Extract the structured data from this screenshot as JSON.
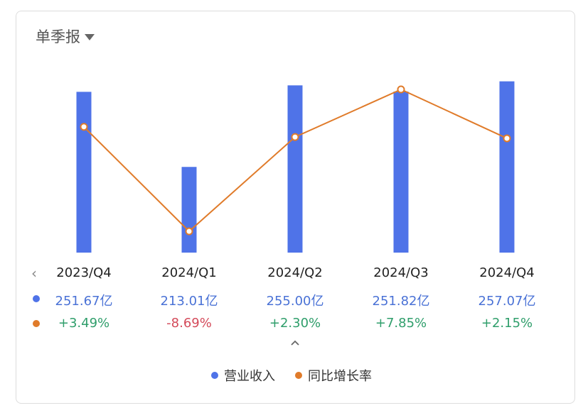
{
  "period_selector": {
    "label": "单季报"
  },
  "chart_data": {
    "type": "bar+line",
    "categories": [
      "2023/Q4",
      "2024/Q1",
      "2024/Q2",
      "2024/Q3",
      "2024/Q4"
    ],
    "series": [
      {
        "name": "营业收入",
        "type": "bar",
        "color": "#4f73e8",
        "values": [
          251.67,
          213.01,
          255.0,
          251.82,
          257.07
        ],
        "labels": [
          "251.67亿",
          "213.01亿",
          "255.00亿",
          "251.82亿",
          "257.07亿"
        ]
      },
      {
        "name": "同比增长率",
        "type": "line",
        "color": "#e07b2a",
        "values": [
          3.49,
          -8.69,
          2.3,
          7.85,
          2.15
        ],
        "labels": [
          "+3.49%",
          "-8.69%",
          "+2.30%",
          "+7.85%",
          "+2.15%"
        ]
      }
    ]
  },
  "colors": {
    "positive": "#2f9e6b",
    "negative": "#d44a5a"
  },
  "icons": {
    "prev": "chevron-left-icon",
    "collapse": "chevron-up-icon",
    "period": "caret-down-icon"
  }
}
